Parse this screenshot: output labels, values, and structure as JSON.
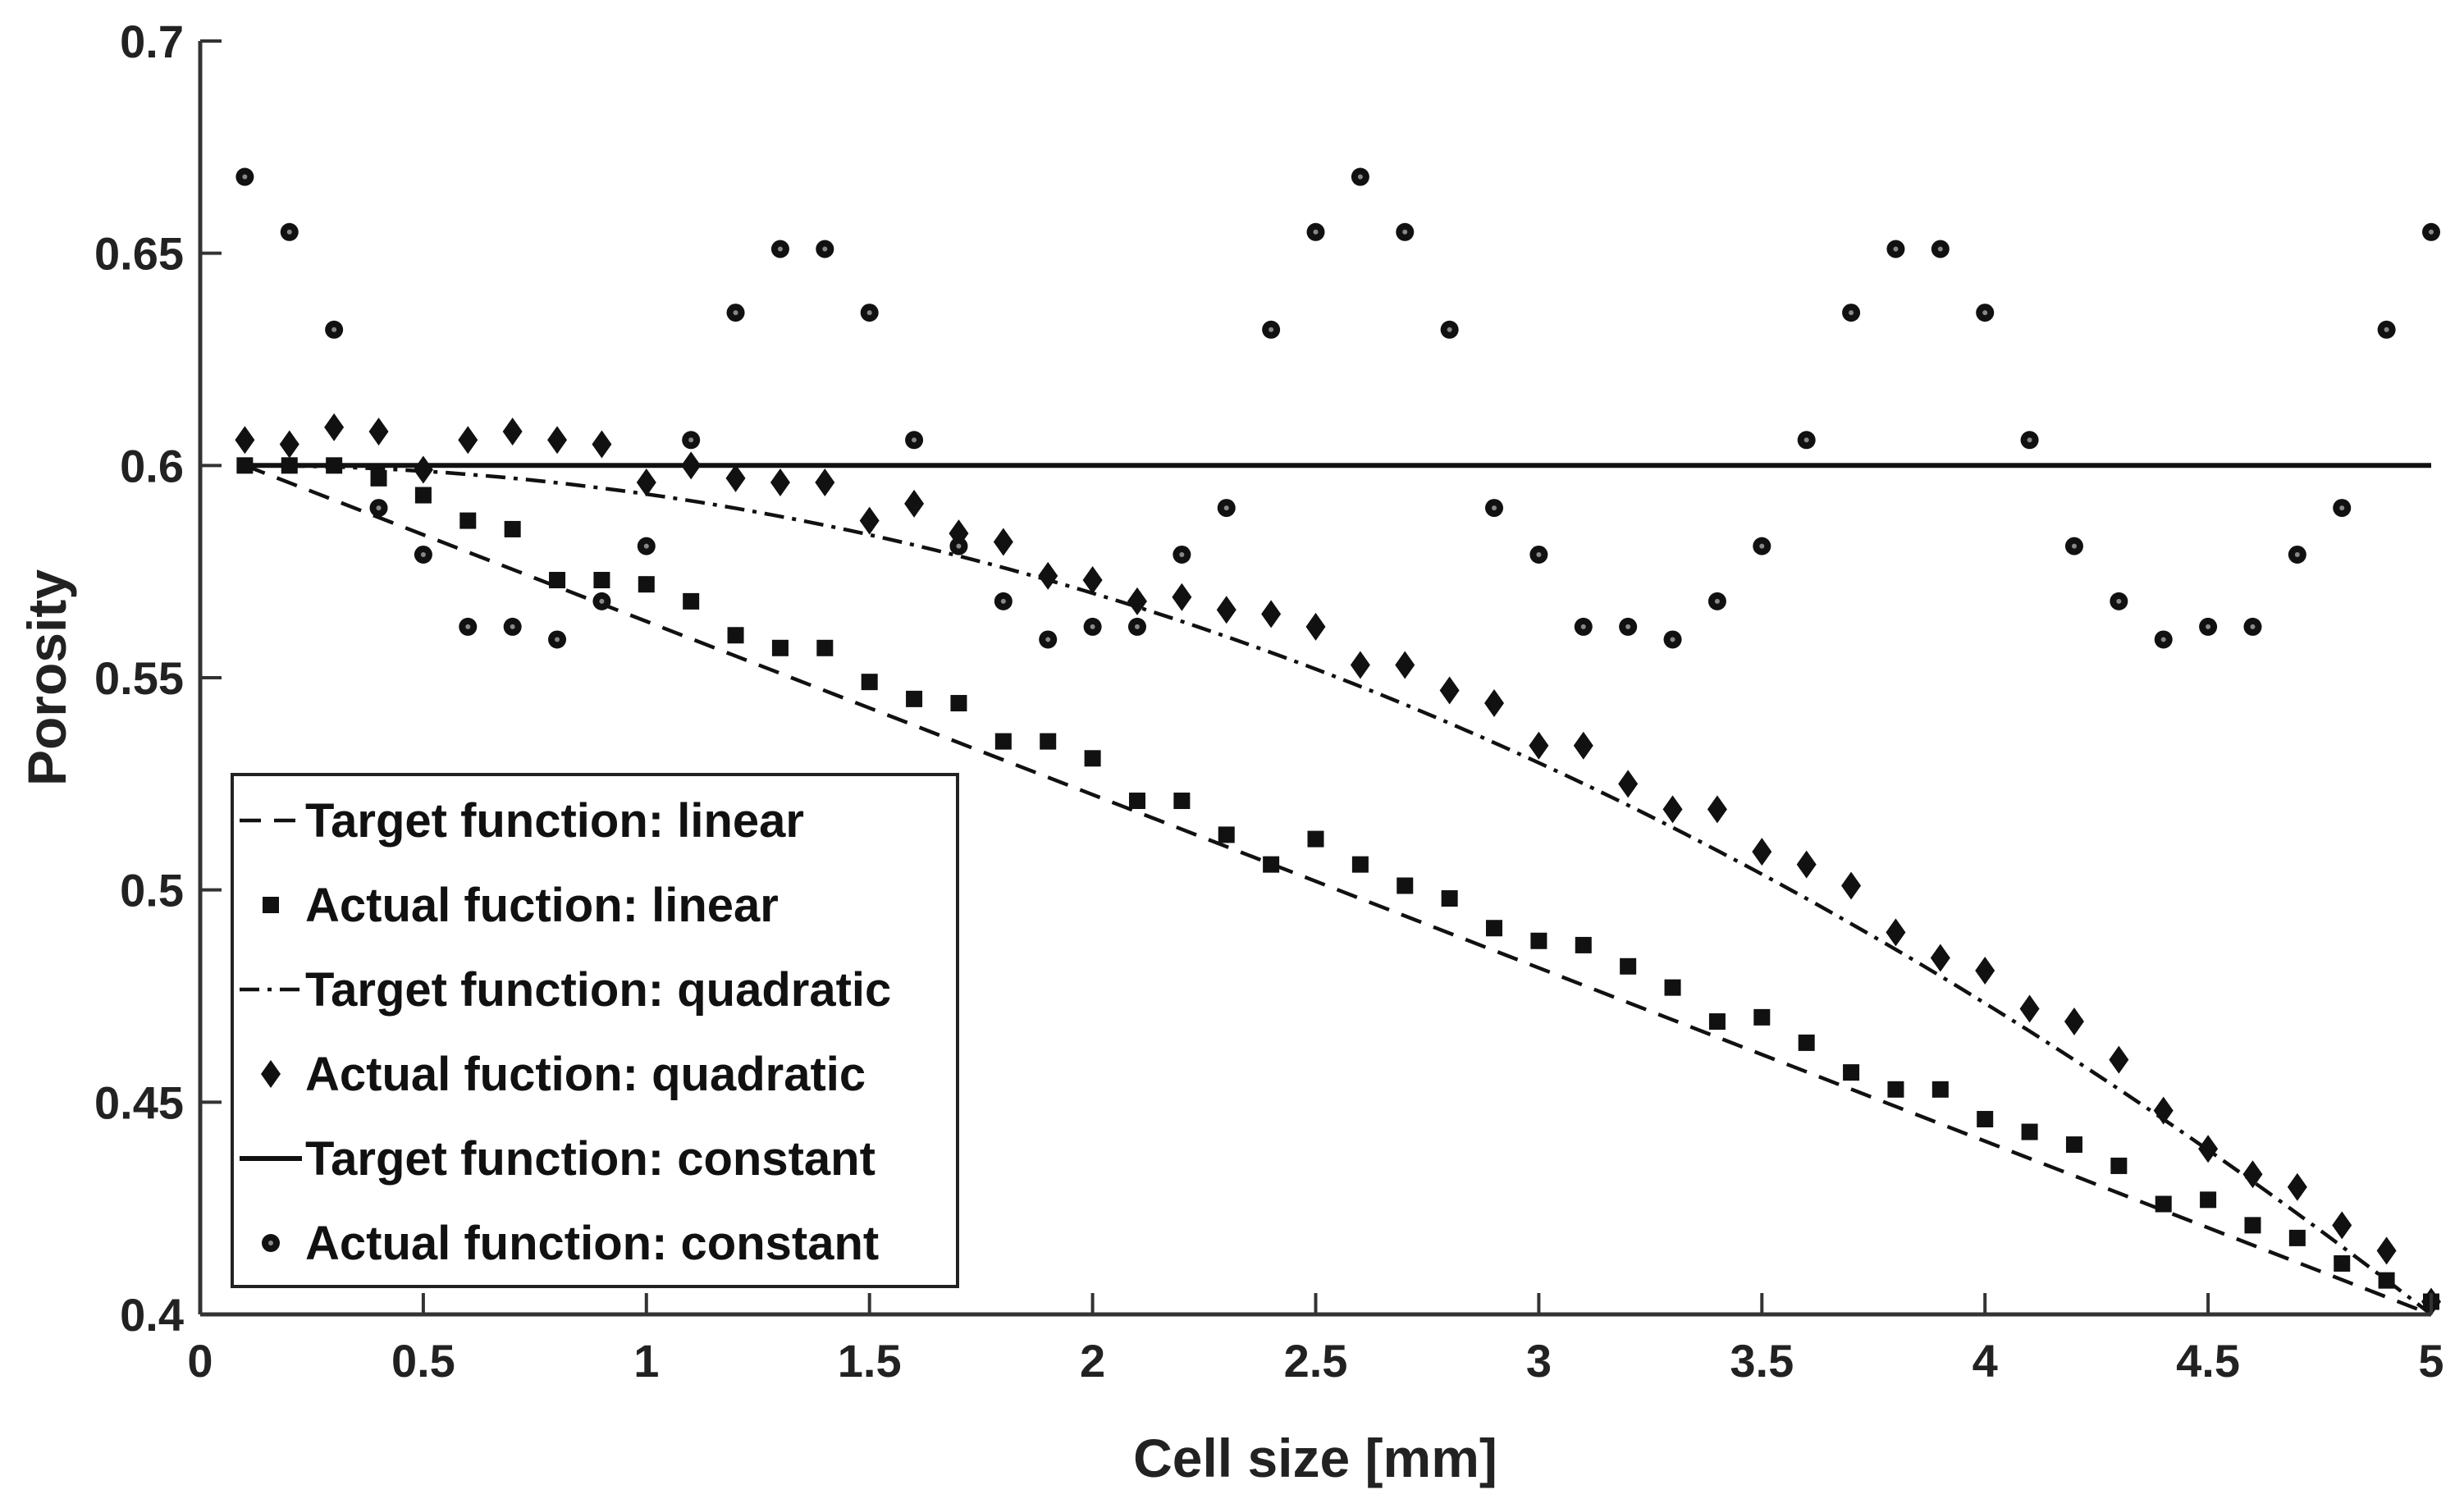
{
  "chart_data": {
    "type": "scatter",
    "title": "",
    "xlabel": "Cell size [mm]",
    "ylabel": "Porosity",
    "xlim": [
      0,
      5
    ],
    "ylim": [
      0.4,
      0.7
    ],
    "xticks": [
      0,
      0.5,
      1,
      1.5,
      2,
      2.5,
      3,
      3.5,
      4,
      4.5,
      5
    ],
    "xtick_labels": [
      "0",
      "0.5",
      "1",
      "1.5",
      "2",
      "2.5",
      "3",
      "3.5",
      "4",
      "4.5",
      "5"
    ],
    "yticks": [
      0.4,
      0.45,
      0.5,
      0.55,
      0.6,
      0.65,
      0.7
    ],
    "ytick_labels": [
      "0.4",
      "0.45",
      "0.5",
      "0.55",
      "0.6",
      "0.65",
      "0.7"
    ],
    "grid": false,
    "legend_position": "bottom-left",
    "x": [
      0.1,
      0.2,
      0.3,
      0.4,
      0.5,
      0.6,
      0.7,
      0.8,
      0.9,
      1.0,
      1.1,
      1.2,
      1.3,
      1.4,
      1.5,
      1.6,
      1.7,
      1.8,
      1.9,
      2.0,
      2.1,
      2.2,
      2.3,
      2.4,
      2.5,
      2.6,
      2.7,
      2.8,
      2.9,
      3.0,
      3.1,
      3.2,
      3.3,
      3.4,
      3.5,
      3.6,
      3.7,
      3.8,
      3.9,
      4.0,
      4.1,
      4.2,
      4.3,
      4.4,
      4.5,
      4.6,
      4.7,
      4.8,
      4.9,
      5.0
    ],
    "series": [
      {
        "name": "Target function: linear",
        "legend_label": "- -Target function: linear",
        "kind": "line",
        "style": "dashed",
        "points": [
          [
            0.1,
            0.6
          ],
          [
            5.0,
            0.4
          ]
        ]
      },
      {
        "name": "Actual fuction: linear",
        "legend_label": "Actual fuction: linear",
        "kind": "marker",
        "marker": "square",
        "values": [
          0.6,
          0.6,
          0.6,
          0.597,
          0.593,
          0.587,
          0.585,
          0.573,
          0.573,
          0.572,
          0.568,
          0.56,
          0.557,
          0.557,
          0.549,
          0.545,
          0.544,
          0.535,
          0.535,
          0.531,
          0.521,
          0.521,
          0.513,
          0.506,
          0.512,
          0.506,
          0.501,
          0.498,
          0.491,
          0.488,
          0.487,
          0.482,
          0.477,
          0.469,
          0.47,
          0.464,
          0.457,
          0.453,
          0.453,
          0.446,
          0.443,
          0.44,
          0.435,
          0.426,
          0.427,
          0.421,
          0.418,
          0.412,
          0.408,
          0.403
        ]
      },
      {
        "name": "Target function: quadratic",
        "legend_label": "- -·Target function: quadratic",
        "kind": "line",
        "style": "dashdot",
        "formula": "0.6 - 0.2*((x-0.1)/4.9)^2"
      },
      {
        "name": "Actual fuction: quadratic",
        "legend_label": "Actual fuction: quadratic",
        "kind": "marker",
        "marker": "diamond",
        "values": [
          0.606,
          0.605,
          0.609,
          0.608,
          0.599,
          0.606,
          0.608,
          0.606,
          0.605,
          0.596,
          0.6,
          0.597,
          0.596,
          0.596,
          0.587,
          0.591,
          0.584,
          0.582,
          0.574,
          0.573,
          0.568,
          0.569,
          0.566,
          0.565,
          0.562,
          0.553,
          0.553,
          0.547,
          0.544,
          0.534,
          0.534,
          0.525,
          0.519,
          0.519,
          0.509,
          0.506,
          0.501,
          0.49,
          0.484,
          0.481,
          0.472,
          0.469,
          0.46,
          0.448,
          0.439,
          0.433,
          0.43,
          0.421,
          0.415,
          0.403
        ]
      },
      {
        "name": "Target function: constant",
        "legend_label": "Target function: constant",
        "kind": "line",
        "style": "solid",
        "points": [
          [
            0.1,
            0.6
          ],
          [
            5.0,
            0.6
          ]
        ]
      },
      {
        "name": "Actual function: constant",
        "legend_label": "Actual function: constant",
        "kind": "marker",
        "marker": "circle",
        "values": [
          0.668,
          0.655,
          0.632,
          0.59,
          0.579,
          0.562,
          0.562,
          0.559,
          0.568,
          0.581,
          0.606,
          0.636,
          0.651,
          0.651,
          0.636,
          0.606,
          0.581,
          0.568,
          0.559,
          0.562,
          0.562,
          0.579,
          0.59,
          0.632,
          0.655,
          0.668,
          0.655,
          0.632,
          0.59,
          0.579,
          0.562,
          0.562,
          0.559,
          0.568,
          0.581,
          0.606,
          0.636,
          0.651,
          0.651,
          0.636,
          0.606,
          0.581,
          0.568,
          0.559,
          0.562,
          0.562,
          0.579,
          0.59,
          0.632,
          0.655
        ]
      }
    ]
  }
}
